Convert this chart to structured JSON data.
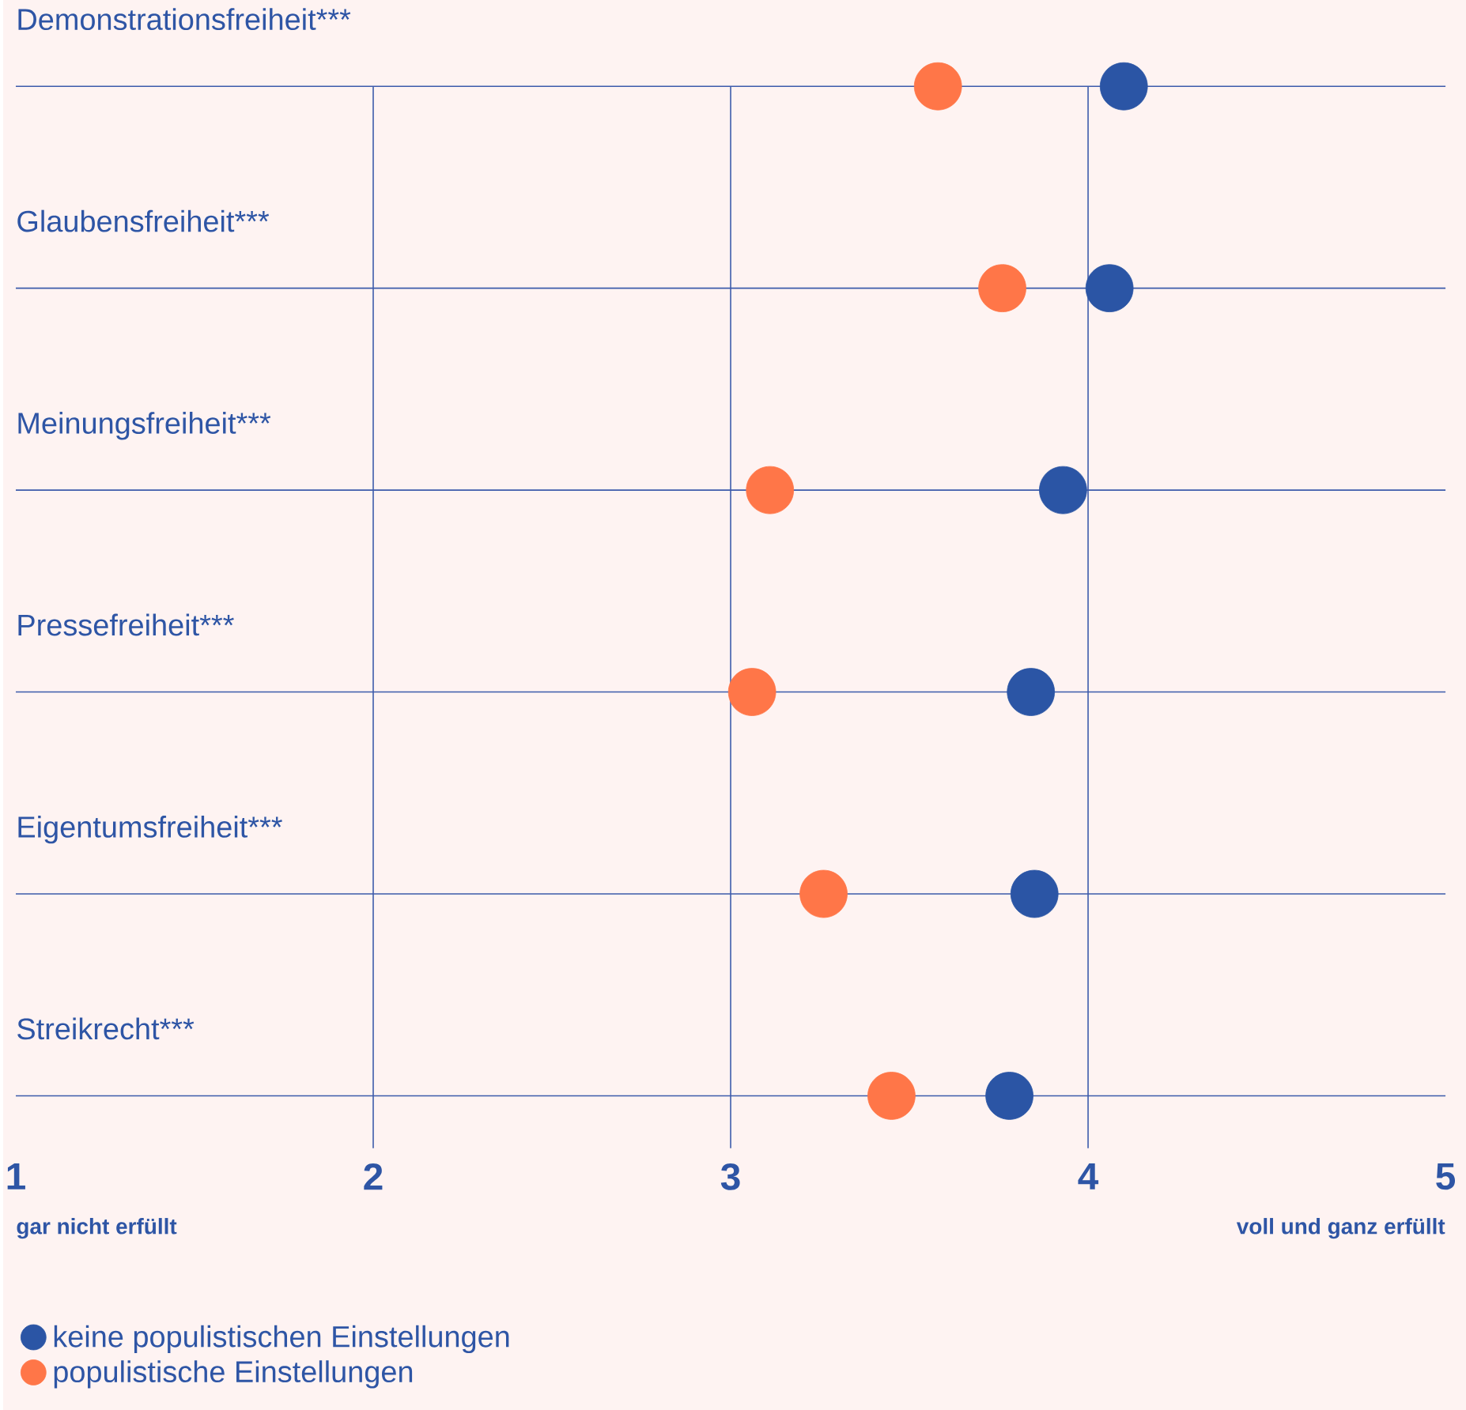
{
  "chart_data": {
    "type": "scatter",
    "orientation": "horizontal",
    "categories": [
      "Demonstrationsfreiheit***",
      "Glaubensfreiheit***",
      "Meinungsfreiheit***",
      "Pressefreiheit***",
      "Eigentumsfreiheit***",
      "Streikrecht***"
    ],
    "series": [
      {
        "name": "keine populistischen Einstellungen",
        "color": "#2b55a5",
        "values": [
          4.1,
          4.06,
          3.93,
          3.84,
          3.85,
          3.78
        ]
      },
      {
        "name": "populistische Einstellungen",
        "color": "#ff7648",
        "values": [
          3.58,
          3.76,
          3.11,
          3.06,
          3.26,
          3.45
        ]
      }
    ],
    "xlim": [
      1,
      5
    ],
    "xticks": [
      1,
      2,
      3,
      4,
      5
    ],
    "grid": true,
    "legend": "bottom left",
    "marker": "circle",
    "annotations": [
      "gar nicht erfüllt",
      "voll und ganz erfüllt"
    ]
  }
}
